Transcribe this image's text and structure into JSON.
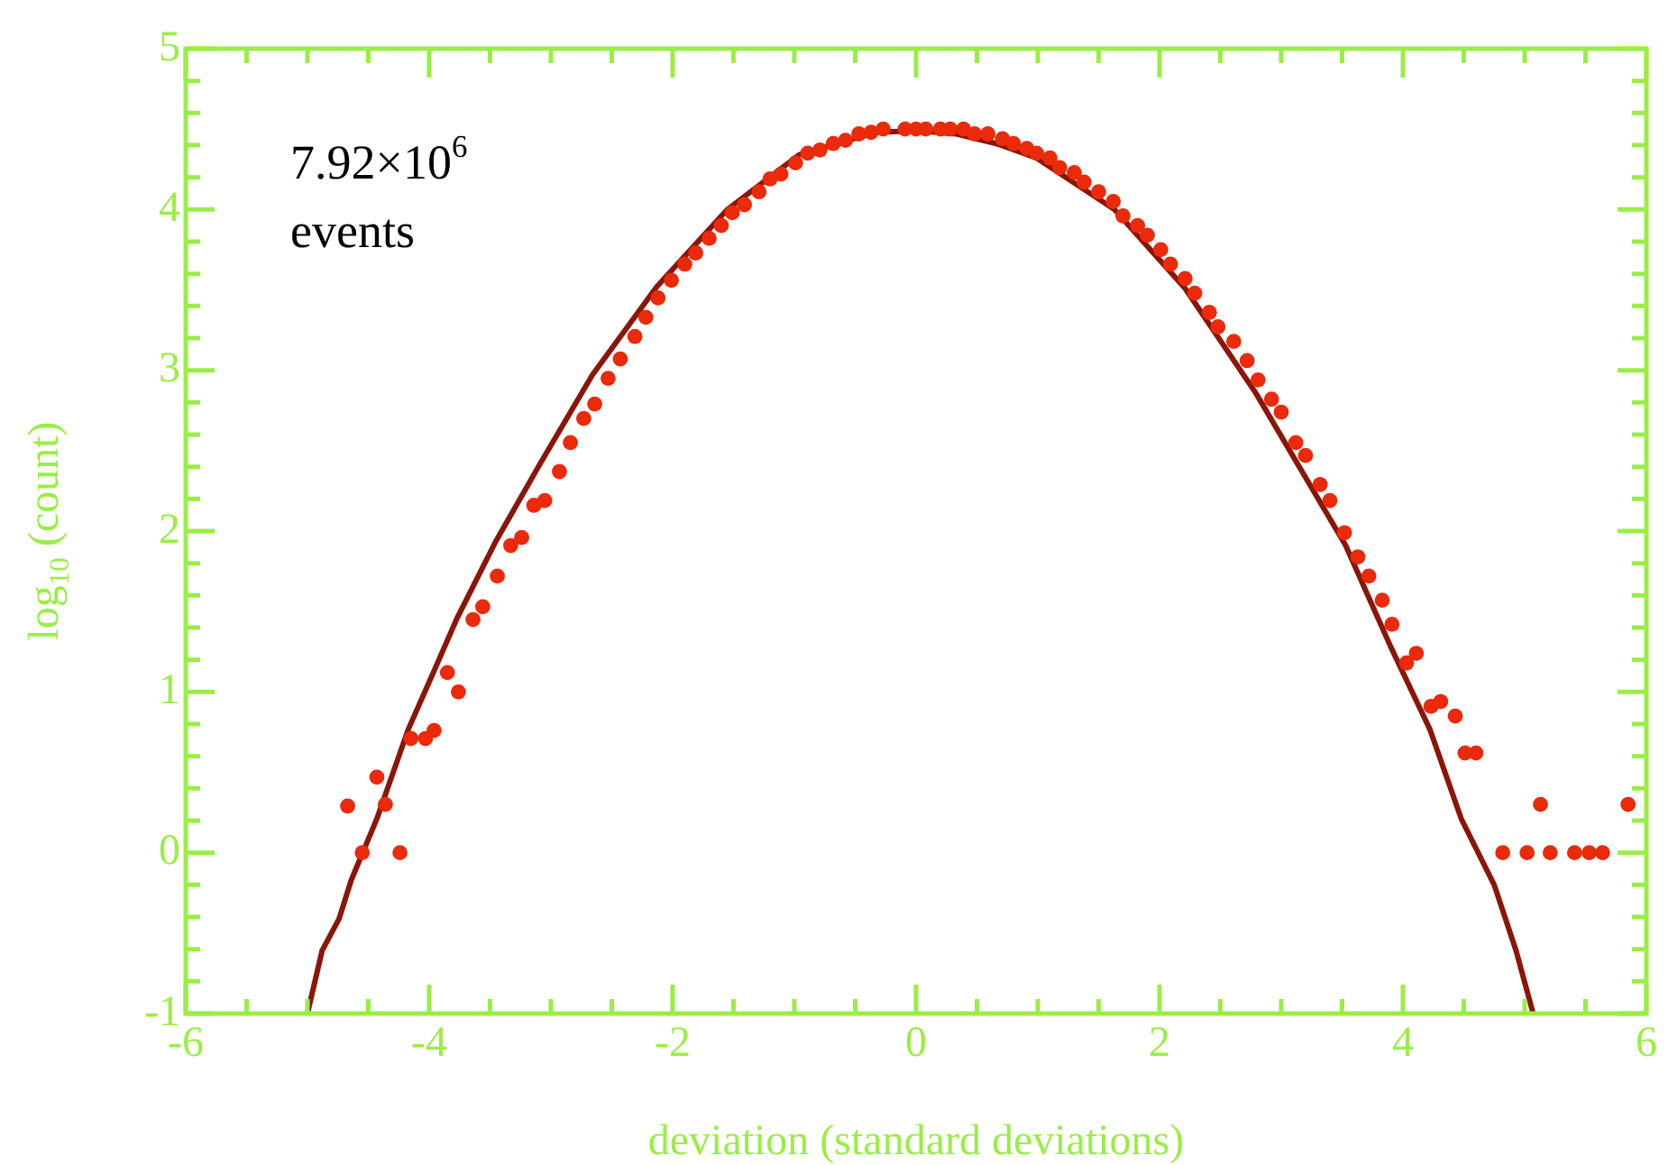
{
  "chart_data": {
    "type": "scatter",
    "xlabel": "deviation (standard deviations)",
    "ylabel": "log$_{10}$ (count)",
    "annotations": [
      "7.92×10$^{6}$",
      "events"
    ],
    "xlim": [
      -6,
      6
    ],
    "ylim": [
      -1,
      5
    ],
    "xticks": [
      -6,
      {
        "value": -5.5,
        "label": null
      },
      {
        "value": -5,
        "label": null
      },
      {
        "value": -4.5,
        "label": null
      },
      -4,
      {
        "value": -3.5,
        "label": null
      },
      {
        "value": -3,
        "label": null
      },
      {
        "value": -2.5,
        "label": null
      },
      -2,
      {
        "value": -1.5,
        "label": null
      },
      {
        "value": -1,
        "label": null
      },
      {
        "value": -0.5,
        "label": null
      },
      0,
      {
        "value": 0.5,
        "label": null
      },
      {
        "value": 1,
        "label": null
      },
      {
        "value": 1.5,
        "label": null
      },
      2,
      {
        "value": 2.5,
        "label": null
      },
      {
        "value": 3,
        "label": null
      },
      {
        "value": 3.5,
        "label": null
      },
      4,
      {
        "value": 4.5,
        "label": null
      },
      {
        "value": 5,
        "label": null
      },
      {
        "value": 5.5,
        "label": null
      },
      6
    ],
    "yticks": [
      -1,
      {
        "value": -0.8,
        "label": null
      },
      {
        "value": -0.6,
        "label": null
      },
      {
        "value": -0.4,
        "label": null
      },
      {
        "value": -0.2,
        "label": null
      },
      0,
      {
        "value": 0.2,
        "label": null
      },
      {
        "value": 0.4,
        "label": null
      },
      {
        "value": 0.6,
        "label": null
      },
      {
        "value": 0.8,
        "label": null
      },
      1,
      {
        "value": 1.2,
        "label": null
      },
      {
        "value": 1.4,
        "label": null
      },
      {
        "value": 1.6,
        "label": null
      },
      {
        "value": 1.8,
        "label": null
      },
      2,
      {
        "value": 2.2,
        "label": null
      },
      {
        "value": 2.4,
        "label": null
      },
      {
        "value": 2.6,
        "label": null
      },
      {
        "value": 2.8,
        "label": null
      },
      3,
      {
        "value": 3.2,
        "label": null
      },
      {
        "value": 3.4,
        "label": null
      },
      {
        "value": 3.6,
        "label": null
      },
      {
        "value": 3.8,
        "label": null
      },
      4,
      {
        "value": 4.2,
        "label": null
      },
      {
        "value": 4.4,
        "label": null
      },
      {
        "value": 4.6,
        "label": null
      },
      {
        "value": 4.8,
        "label": null
      },
      5
    ],
    "grid": false,
    "legend": false,
    "marker": "circle",
    "series": [
      {
        "type": "line",
        "color": "#8b1508",
        "marker": "none",
        "line_style": "solid",
        "x": [
          -5.0,
          -4.88,
          -4.74,
          -4.64,
          -4.43,
          -4.17,
          -3.96,
          -3.77,
          -3.45,
          -3.08,
          -2.66,
          -2.13,
          -1.55,
          -0.96,
          -0.33,
          0,
          0.33,
          0.66,
          0.99,
          1.63,
          2.21,
          2.79,
          3.53,
          3.9,
          4.22,
          4.48,
          4.75,
          4.93,
          5.07
        ],
        "values": [
          -1,
          -0.61,
          -0.41,
          -0.17,
          0.21,
          0.77,
          1.13,
          1.46,
          1.94,
          2.43,
          2.97,
          3.52,
          4.0,
          4.34,
          4.48,
          4.49,
          4.47,
          4.41,
          4.32,
          4.0,
          3.51,
          2.86,
          1.91,
          1.28,
          0.77,
          0.21,
          -0.2,
          -0.61,
          -1
        ]
      },
      {
        "color": "#ea2a0a",
        "x": [
          -4.67,
          -4.55,
          -4.43,
          -4.36,
          -4.24,
          -4.15,
          -4.03,
          -3.96,
          -3.85,
          -3.76,
          -3.64,
          -3.56,
          -3.44,
          -3.33,
          -3.24,
          -3.14,
          -3.05,
          -2.93,
          -2.84,
          -2.73,
          -2.64,
          -2.53,
          -2.43,
          -2.31,
          -2.22,
          -2.12,
          -2.01,
          -1.9,
          -1.81,
          -1.7,
          -1.6,
          -1.51,
          -1.41,
          -1.29,
          -1.2,
          -1.11,
          -0.99,
          -0.89,
          -0.79,
          -0.68,
          -0.58,
          -0.47,
          -0.37,
          -0.27,
          -0.09,
          0.0,
          0.08,
          0.2,
          0.28,
          0.39,
          0.48,
          0.59,
          0.71,
          0.8,
          0.91,
          0.99,
          1.1,
          1.18,
          1.3,
          1.38,
          1.5,
          1.62,
          1.7,
          1.82,
          1.9,
          2.01,
          2.09,
          2.21,
          2.29,
          2.41,
          2.48,
          2.61,
          2.72,
          2.81,
          2.92,
          3.0,
          3.12,
          3.2,
          3.32,
          3.4,
          3.52,
          3.63,
          3.72,
          3.83,
          3.91,
          4.03,
          4.11,
          4.23,
          4.31,
          4.43,
          4.51,
          4.6,
          4.82,
          5.02,
          5.13,
          5.21,
          5.41,
          5.53,
          5.64,
          5.85
        ],
        "values": [
          0.29,
          0,
          0.47,
          0.3,
          0,
          0.71,
          0.71,
          0.76,
          1.12,
          1.0,
          1.45,
          1.53,
          1.72,
          1.91,
          1.96,
          2.16,
          2.19,
          2.37,
          2.55,
          2.7,
          2.79,
          2.95,
          3.07,
          3.21,
          3.33,
          3.45,
          3.56,
          3.66,
          3.73,
          3.82,
          3.9,
          3.98,
          4.03,
          4.11,
          4.19,
          4.22,
          4.29,
          4.35,
          4.37,
          4.41,
          4.43,
          4.47,
          4.48,
          4.5,
          4.5,
          4.5,
          4.5,
          4.5,
          4.5,
          4.5,
          4.47,
          4.47,
          4.44,
          4.41,
          4.38,
          4.35,
          4.32,
          4.26,
          4.23,
          4.17,
          4.11,
          4.05,
          3.96,
          3.9,
          3.84,
          3.75,
          3.66,
          3.57,
          3.48,
          3.36,
          3.27,
          3.18,
          3.06,
          2.94,
          2.82,
          2.74,
          2.55,
          2.47,
          2.29,
          2.19,
          1.99,
          1.84,
          1.72,
          1.57,
          1.42,
          1.18,
          1.24,
          0.91,
          0.94,
          0.85,
          0.62,
          0.62,
          0,
          0,
          0.3,
          0,
          0,
          0,
          0,
          0.3
        ]
      }
    ]
  }
}
